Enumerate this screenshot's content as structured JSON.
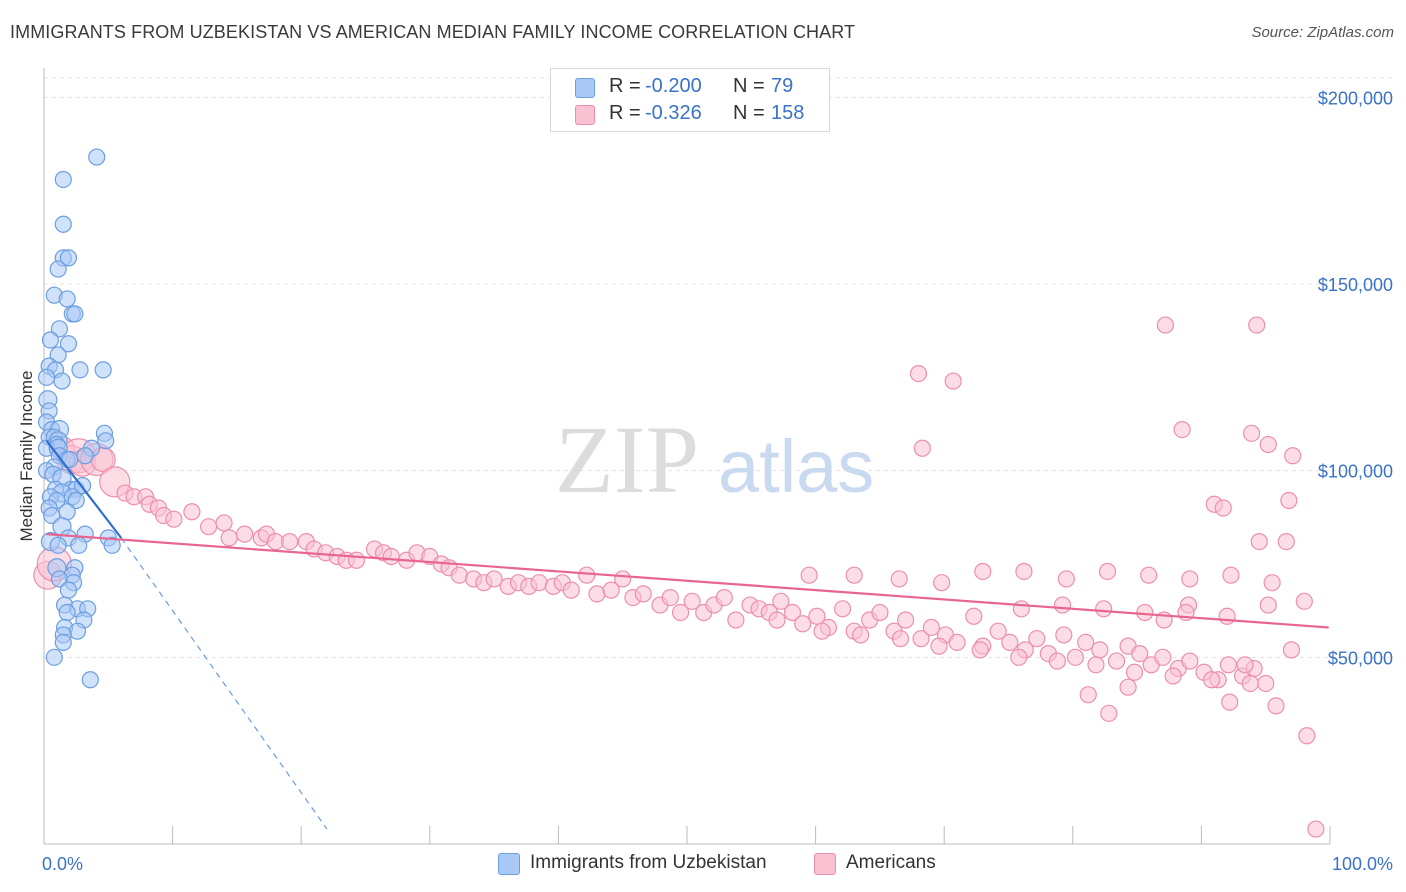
{
  "header": {
    "title": "IMMIGRANTS FROM UZBEKISTAN VS AMERICAN MEDIAN FAMILY INCOME CORRELATION CHART",
    "source": "Source: ZipAtlas.com"
  },
  "watermark": {
    "zip": "ZIP",
    "atlas": "atlas"
  },
  "legend": {
    "r_label": "R =",
    "n_label": "N =",
    "rows": [
      {
        "r": "-0.200",
        "n": "79",
        "color": "#a9c8f5",
        "border": "#6c9ee0"
      },
      {
        "r": "-0.326",
        "n": "158",
        "color": "#f9c1d2",
        "border": "#ec8fac"
      }
    ]
  },
  "chart_data": {
    "type": "scatter",
    "title": "IMMIGRANTS FROM UZBEKISTAN VS AMERICAN MEDIAN FAMILY INCOME CORRELATION CHART",
    "xlabel": "",
    "ylabel": "Median Family Income",
    "xlim": [
      0,
      100
    ],
    "ylim": [
      0,
      210000
    ],
    "x_tick_labels": [
      "0.0%",
      "100.0%"
    ],
    "y_ticks": [
      50000,
      100000,
      150000,
      200000
    ],
    "y_tick_labels": [
      "$50,000",
      "$100,000",
      "$150,000",
      "$200,000"
    ],
    "grid": true,
    "legend_position": "top-center",
    "series": [
      {
        "name": "Immigrants from Uzbekistan",
        "color": "#a9c8f5",
        "edge": "#6c9ee0",
        "trend": {
          "x0": 0.2,
          "y0": 108000,
          "x1": 6.0,
          "y1": 82000,
          "dash_to_x": 22.0,
          "dash_to_y": 4000,
          "color": "#2e6fd1"
        },
        "points": [
          [
            4.1,
            184000
          ],
          [
            1.5,
            178000
          ],
          [
            1.5,
            166000
          ],
          [
            1.5,
            157000
          ],
          [
            1.9,
            157000
          ],
          [
            1.1,
            154000
          ],
          [
            0.8,
            147000
          ],
          [
            1.8,
            146000
          ],
          [
            2.2,
            142000
          ],
          [
            2.4,
            142000
          ],
          [
            1.2,
            138000
          ],
          [
            0.5,
            135000
          ],
          [
            1.9,
            134000
          ],
          [
            1.1,
            131000
          ],
          [
            0.4,
            128000
          ],
          [
            0.9,
            127000
          ],
          [
            2.8,
            127000
          ],
          [
            4.6,
            127000
          ],
          [
            0.2,
            125000
          ],
          [
            1.4,
            124000
          ],
          [
            0.3,
            119000
          ],
          [
            0.4,
            116000
          ],
          [
            0.2,
            113000
          ],
          [
            0.6,
            111000
          ],
          [
            1.2,
            111000
          ],
          [
            4.7,
            110000
          ],
          [
            0.4,
            109000
          ],
          [
            0.8,
            109000
          ],
          [
            1.1,
            108000
          ],
          [
            1.0,
            107000
          ],
          [
            4.8,
            108000
          ],
          [
            0.2,
            106000
          ],
          [
            1.1,
            106000
          ],
          [
            3.7,
            106000
          ],
          [
            1.2,
            104000
          ],
          [
            1.8,
            103000
          ],
          [
            3.2,
            104000
          ],
          [
            0.8,
            101000
          ],
          [
            0.2,
            100000
          ],
          [
            0.7,
            99000
          ],
          [
            1.4,
            98000
          ],
          [
            2.1,
            95000
          ],
          [
            0.9,
            95000
          ],
          [
            2.5,
            95000
          ],
          [
            1.4,
            94000
          ],
          [
            0.5,
            93000
          ],
          [
            2.2,
            93000
          ],
          [
            1.0,
            92000
          ],
          [
            2.5,
            92000
          ],
          [
            0.4,
            90000
          ],
          [
            1.8,
            89000
          ],
          [
            0.6,
            88000
          ],
          [
            1.4,
            85000
          ],
          [
            3.2,
            83000
          ],
          [
            1.9,
            82000
          ],
          [
            5.0,
            82000
          ],
          [
            0.5,
            81000
          ],
          [
            1.1,
            80000
          ],
          [
            5.3,
            80000
          ],
          [
            2.7,
            80000
          ],
          [
            1.0,
            74000
          ],
          [
            2.4,
            74000
          ],
          [
            2.2,
            72000
          ],
          [
            1.2,
            71000
          ],
          [
            2.3,
            70000
          ],
          [
            1.9,
            68000
          ],
          [
            1.6,
            64000
          ],
          [
            2.6,
            63000
          ],
          [
            3.4,
            63000
          ],
          [
            1.8,
            62000
          ],
          [
            3.1,
            60000
          ],
          [
            1.6,
            58000
          ],
          [
            2.6,
            57000
          ],
          [
            1.5,
            56000
          ],
          [
            1.5,
            54000
          ],
          [
            0.8,
            50000
          ],
          [
            3.6,
            44000
          ],
          [
            2.0,
            103000
          ],
          [
            3.0,
            96000
          ]
        ]
      },
      {
        "name": "Americans",
        "color": "#f9c1d2",
        "edge": "#ec8fac",
        "trend": {
          "x0": 0.2,
          "y0": 83000,
          "x1": 99.9,
          "y1": 58000,
          "color": "#e8658f"
        },
        "points": [
          [
            1.5,
            106000
          ],
          [
            2.1,
            103000
          ],
          [
            2.7,
            104000
          ],
          [
            3.0,
            102000
          ],
          [
            4.1,
            103000
          ],
          [
            4.6,
            103000
          ],
          [
            5.5,
            97000
          ],
          [
            6.3,
            94000
          ],
          [
            7.0,
            93000
          ],
          [
            7.9,
            93000
          ],
          [
            8.2,
            91000
          ],
          [
            8.9,
            90000
          ],
          [
            9.3,
            88000
          ],
          [
            10.1,
            87000
          ],
          [
            11.5,
            89000
          ],
          [
            12.8,
            85000
          ],
          [
            14.0,
            86000
          ],
          [
            15.6,
            83000
          ],
          [
            16.9,
            82000
          ],
          [
            14.4,
            82000
          ],
          [
            17.3,
            83000
          ],
          [
            18.0,
            81000
          ],
          [
            19.1,
            81000
          ],
          [
            20.4,
            81000
          ],
          [
            21.0,
            79000
          ],
          [
            21.9,
            78000
          ],
          [
            22.8,
            77000
          ],
          [
            23.5,
            76000
          ],
          [
            24.3,
            76000
          ],
          [
            25.7,
            79000
          ],
          [
            26.4,
            78000
          ],
          [
            27.0,
            77000
          ],
          [
            28.2,
            76000
          ],
          [
            29.0,
            78000
          ],
          [
            30.0,
            77000
          ],
          [
            30.9,
            75000
          ],
          [
            31.5,
            74000
          ],
          [
            32.3,
            72000
          ],
          [
            33.4,
            71000
          ],
          [
            34.2,
            70000
          ],
          [
            35.0,
            71000
          ],
          [
            36.1,
            69000
          ],
          [
            36.9,
            70000
          ],
          [
            37.7,
            69000
          ],
          [
            38.5,
            70000
          ],
          [
            39.6,
            69000
          ],
          [
            40.3,
            70000
          ],
          [
            41.0,
            68000
          ],
          [
            42.2,
            72000
          ],
          [
            43.0,
            67000
          ],
          [
            44.1,
            68000
          ],
          [
            45.0,
            71000
          ],
          [
            45.8,
            66000
          ],
          [
            46.6,
            67000
          ],
          [
            47.9,
            64000
          ],
          [
            48.7,
            66000
          ],
          [
            49.5,
            62000
          ],
          [
            50.4,
            65000
          ],
          [
            51.3,
            62000
          ],
          [
            52.1,
            64000
          ],
          [
            52.9,
            66000
          ],
          [
            53.8,
            60000
          ],
          [
            54.9,
            64000
          ],
          [
            55.6,
            63000
          ],
          [
            56.4,
            62000
          ],
          [
            57.3,
            65000
          ],
          [
            58.2,
            62000
          ],
          [
            59.0,
            59000
          ],
          [
            60.1,
            61000
          ],
          [
            61.0,
            58000
          ],
          [
            62.1,
            63000
          ],
          [
            63.0,
            57000
          ],
          [
            64.2,
            60000
          ],
          [
            65.0,
            62000
          ],
          [
            66.1,
            57000
          ],
          [
            67.0,
            60000
          ],
          [
            68.2,
            55000
          ],
          [
            69.0,
            58000
          ],
          [
            70.1,
            56000
          ],
          [
            71.0,
            54000
          ],
          [
            72.3,
            61000
          ],
          [
            73.0,
            53000
          ],
          [
            74.2,
            57000
          ],
          [
            75.1,
            54000
          ],
          [
            76.3,
            52000
          ],
          [
            77.2,
            55000
          ],
          [
            78.1,
            51000
          ],
          [
            79.3,
            56000
          ],
          [
            80.2,
            50000
          ],
          [
            81.0,
            54000
          ],
          [
            82.1,
            52000
          ],
          [
            83.4,
            49000
          ],
          [
            84.3,
            53000
          ],
          [
            85.2,
            51000
          ],
          [
            86.1,
            48000
          ],
          [
            87.0,
            50000
          ],
          [
            88.2,
            47000
          ],
          [
            89.1,
            49000
          ],
          [
            90.2,
            46000
          ],
          [
            91.3,
            44000
          ],
          [
            92.1,
            48000
          ],
          [
            93.2,
            45000
          ],
          [
            94.1,
            47000
          ],
          [
            95.0,
            43000
          ],
          [
            57.0,
            60000
          ],
          [
            60.5,
            57000
          ],
          [
            63.5,
            56000
          ],
          [
            66.6,
            55000
          ],
          [
            69.6,
            53000
          ],
          [
            72.8,
            52000
          ],
          [
            75.8,
            50000
          ],
          [
            78.8,
            49000
          ],
          [
            81.8,
            48000
          ],
          [
            84.8,
            46000
          ],
          [
            87.8,
            45000
          ],
          [
            90.8,
            44000
          ],
          [
            93.8,
            43000
          ],
          [
            96.8,
            92000
          ],
          [
            68.0,
            126000
          ],
          [
            68.3,
            106000
          ],
          [
            59.5,
            72000
          ],
          [
            63.0,
            72000
          ],
          [
            66.5,
            71000
          ],
          [
            69.8,
            70000
          ],
          [
            73.0,
            73000
          ],
          [
            76.2,
            73000
          ],
          [
            79.5,
            71000
          ],
          [
            82.7,
            73000
          ],
          [
            85.9,
            72000
          ],
          [
            89.1,
            71000
          ],
          [
            92.3,
            72000
          ],
          [
            95.5,
            70000
          ],
          [
            70.7,
            124000
          ],
          [
            87.2,
            139000
          ],
          [
            94.3,
            139000
          ],
          [
            88.5,
            111000
          ],
          [
            93.9,
            110000
          ],
          [
            95.2,
            107000
          ],
          [
            97.1,
            104000
          ],
          [
            91.0,
            91000
          ],
          [
            91.7,
            90000
          ],
          [
            94.5,
            81000
          ],
          [
            96.6,
            81000
          ],
          [
            81.2,
            40000
          ],
          [
            82.8,
            35000
          ],
          [
            84.3,
            42000
          ],
          [
            87.1,
            60000
          ],
          [
            89.0,
            64000
          ],
          [
            92.2,
            38000
          ],
          [
            93.4,
            48000
          ],
          [
            95.8,
            37000
          ],
          [
            97.0,
            52000
          ],
          [
            98.2,
            29000
          ],
          [
            98.9,
            4000
          ],
          [
            76.0,
            63000
          ],
          [
            79.2,
            64000
          ],
          [
            82.4,
            63000
          ],
          [
            85.6,
            62000
          ],
          [
            88.8,
            62000
          ],
          [
            92.0,
            61000
          ],
          [
            95.2,
            64000
          ],
          [
            98.0,
            65000
          ],
          [
            0.3,
            72000
          ],
          [
            0.8,
            75000
          ]
        ]
      }
    ]
  },
  "axes": {
    "ylabel": "Median Family Income",
    "x_left_label": "0.0%",
    "x_right_label": "100.0%"
  },
  "bottom_legend": [
    {
      "label": "Immigrants from Uzbekistan",
      "color": "#a9c8f5",
      "border": "#6c9ee0"
    },
    {
      "label": "Americans",
      "color": "#f9c1d2",
      "border": "#ec8fac"
    }
  ]
}
